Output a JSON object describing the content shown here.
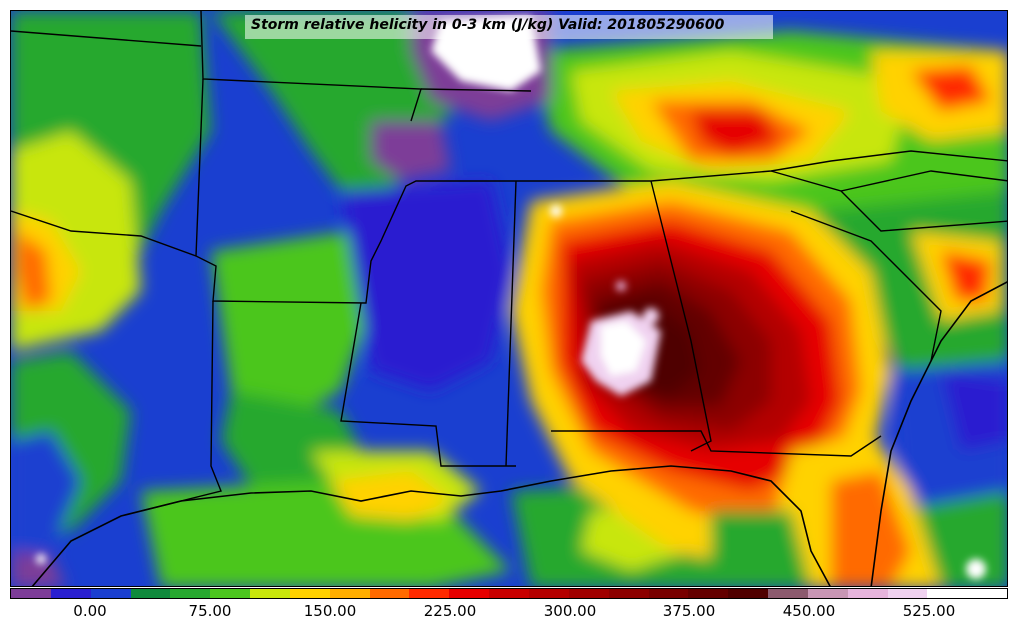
{
  "title": "Storm relative helicity in 0-3 km (J/kg) Valid: 201805290600",
  "colorbar": {
    "colors": [
      "#7d3c98",
      "#2a1fd0",
      "#1a3fd0",
      "#0f8a3c",
      "#27a82f",
      "#4cc61e",
      "#c8e60c",
      "#ffd200",
      "#ffae00",
      "#ff6a00",
      "#ff2a00",
      "#e60000",
      "#c80000",
      "#b40000",
      "#a00000",
      "#8c0000",
      "#780000",
      "#640000",
      "#500000",
      "#8c5a6e",
      "#c896b4",
      "#e6b4dc",
      "#f0d2f0",
      "#ffffff",
      "#ffffff"
    ],
    "ticks": [
      "0.00",
      "75.00",
      "150.00",
      "225.00",
      "300.00",
      "375.00",
      "450.00",
      "525.00"
    ]
  }
}
